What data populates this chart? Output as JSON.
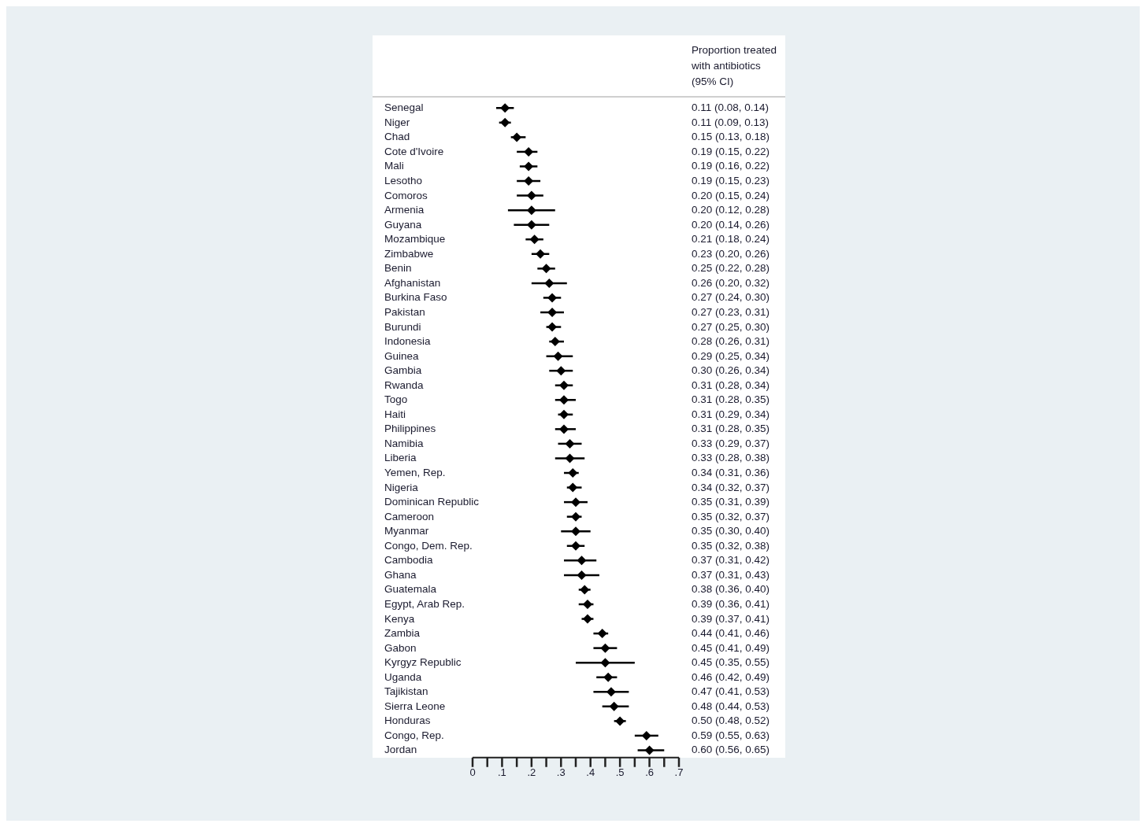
{
  "chart_data": {
    "type": "scatter",
    "orientation": "horizontal",
    "marker": "diamond",
    "grid": false,
    "legend": false,
    "annotations": [
      "Proportion treated with antibiotics (95% CI)"
    ],
    "categories": [
      "Senegal",
      "Niger",
      "Chad",
      "Cote d'Ivoire",
      "Mali",
      "Lesotho",
      "Comoros",
      "Armenia",
      "Guyana",
      "Mozambique",
      "Zimbabwe",
      "Benin",
      "Afghanistan",
      "Burkina Faso",
      "Pakistan",
      "Burundi",
      "Indonesia",
      "Guinea",
      "Gambia",
      "Rwanda",
      "Togo",
      "Haiti",
      "Philippines",
      "Namibia",
      "Liberia",
      "Yemen, Rep.",
      "Nigeria",
      "Dominican Republic",
      "Cameroon",
      "Myanmar",
      "Congo, Dem. Rep.",
      "Cambodia",
      "Ghana",
      "Guatemala",
      "Egypt, Arab Rep.",
      "Kenya",
      "Zambia",
      "Gabon",
      "Kyrgyz Republic",
      "Uganda",
      "Tajikistan",
      "Sierra Leone",
      "Honduras",
      "Congo, Rep.",
      "Jordan"
    ],
    "series": [
      {
        "color": "#000000",
        "values": [
          0.11,
          0.11,
          0.15,
          0.19,
          0.19,
          0.19,
          0.2,
          0.2,
          0.2,
          0.21,
          0.23,
          0.25,
          0.26,
          0.27,
          0.27,
          0.27,
          0.28,
          0.29,
          0.3,
          0.31,
          0.31,
          0.31,
          0.31,
          0.33,
          0.33,
          0.34,
          0.34,
          0.35,
          0.35,
          0.35,
          0.35,
          0.37,
          0.37,
          0.38,
          0.39,
          0.39,
          0.44,
          0.45,
          0.45,
          0.46,
          0.47,
          0.48,
          0.5,
          0.59,
          0.6
        ],
        "errors": [
          [
            0.08,
            0.14
          ],
          [
            0.09,
            0.13
          ],
          [
            0.13,
            0.18
          ],
          [
            0.15,
            0.22
          ],
          [
            0.16,
            0.22
          ],
          [
            0.15,
            0.23
          ],
          [
            0.15,
            0.24
          ],
          [
            0.12,
            0.28
          ],
          [
            0.14,
            0.26
          ],
          [
            0.18,
            0.24
          ],
          [
            0.2,
            0.26
          ],
          [
            0.22,
            0.28
          ],
          [
            0.2,
            0.32
          ],
          [
            0.24,
            0.3
          ],
          [
            0.23,
            0.31
          ],
          [
            0.25,
            0.3
          ],
          [
            0.26,
            0.31
          ],
          [
            0.25,
            0.34
          ],
          [
            0.26,
            0.34
          ],
          [
            0.28,
            0.34
          ],
          [
            0.28,
            0.35
          ],
          [
            0.29,
            0.34
          ],
          [
            0.28,
            0.35
          ],
          [
            0.29,
            0.37
          ],
          [
            0.28,
            0.38
          ],
          [
            0.31,
            0.36
          ],
          [
            0.32,
            0.37
          ],
          [
            0.31,
            0.39
          ],
          [
            0.32,
            0.37
          ],
          [
            0.3,
            0.4
          ],
          [
            0.32,
            0.38
          ],
          [
            0.31,
            0.42
          ],
          [
            0.31,
            0.43
          ],
          [
            0.36,
            0.4
          ],
          [
            0.36,
            0.41
          ],
          [
            0.37,
            0.41
          ],
          [
            0.41,
            0.46
          ],
          [
            0.41,
            0.49
          ],
          [
            0.35,
            0.55
          ],
          [
            0.42,
            0.49
          ],
          [
            0.41,
            0.53
          ],
          [
            0.44,
            0.53
          ],
          [
            0.48,
            0.52
          ],
          [
            0.55,
            0.63
          ],
          [
            0.56,
            0.65
          ]
        ],
        "value_labels": [
          "0.11 (0.08, 0.14)",
          "0.11 (0.09, 0.13)",
          "0.15 (0.13, 0.18)",
          "0.19 (0.15, 0.22)",
          "0.19 (0.16, 0.22)",
          "0.19 (0.15, 0.23)",
          "0.20 (0.15, 0.24)",
          "0.20 (0.12, 0.28)",
          "0.20 (0.14, 0.26)",
          "0.21 (0.18, 0.24)",
          "0.23 (0.20, 0.26)",
          "0.25 (0.22, 0.28)",
          "0.26 (0.20, 0.32)",
          "0.27 (0.24, 0.30)",
          "0.27 (0.23, 0.31)",
          "0.27 (0.25, 0.30)",
          "0.28 (0.26, 0.31)",
          "0.29 (0.25, 0.34)",
          "0.30 (0.26, 0.34)",
          "0.31 (0.28, 0.34)",
          "0.31 (0.28, 0.35)",
          "0.31 (0.29, 0.34)",
          "0.31 (0.28, 0.35)",
          "0.33 (0.29, 0.37)",
          "0.33 (0.28, 0.38)",
          "0.34 (0.31, 0.36)",
          "0.34 (0.32, 0.37)",
          "0.35 (0.31, 0.39)",
          "0.35 (0.32, 0.37)",
          "0.35 (0.30, 0.40)",
          "0.35 (0.32, 0.38)",
          "0.37 (0.31, 0.42)",
          "0.37 (0.31, 0.43)",
          "0.38 (0.36, 0.40)",
          "0.39 (0.36, 0.41)",
          "0.39 (0.37, 0.41)",
          "0.44 (0.41, 0.46)",
          "0.45 (0.41, 0.49)",
          "0.45 (0.35, 0.55)",
          "0.46 (0.42, 0.49)",
          "0.47 (0.41, 0.53)",
          "0.48 (0.44, 0.53)",
          "0.50 (0.48, 0.52)",
          "0.59 (0.55, 0.63)",
          "0.60 (0.56, 0.65)"
        ]
      }
    ],
    "xlim": [
      0,
      0.7
    ],
    "xticks": [
      0,
      {
        "value": 0.05,
        "label": null
      },
      {
        "value": 0.1,
        "label": ".1"
      },
      {
        "value": 0.15,
        "label": null
      },
      {
        "value": 0.2,
        "label": ".2"
      },
      {
        "value": 0.25,
        "label": null
      },
      {
        "value": 0.3,
        "label": ".3"
      },
      {
        "value": 0.35,
        "label": null
      },
      {
        "value": 0.4,
        "label": ".4"
      },
      {
        "value": 0.45,
        "label": null
      },
      {
        "value": 0.5,
        "label": ".5"
      },
      {
        "value": 0.55,
        "label": null
      },
      {
        "value": 0.6,
        "label": ".6"
      },
      {
        "value": 0.65,
        "label": null
      },
      {
        "value": 0.7,
        "label": ".7"
      }
    ]
  }
}
